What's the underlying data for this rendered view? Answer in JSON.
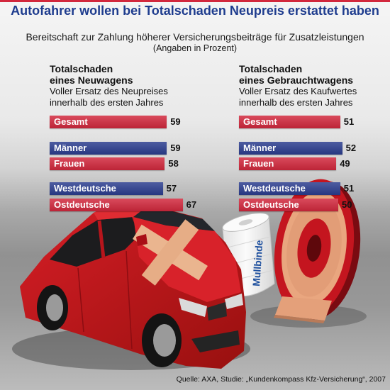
{
  "header": {
    "title": "Autofahrer wollen bei Totalschaden Neupreis erstattet haben",
    "subtitle": "Bereitschaft zur Zahlung höherer Versicherungsbeiträge für Zusatzleistungen",
    "unit_note": "(Angaben in Prozent)"
  },
  "colors": {
    "title": "#1e3c8e",
    "accent_line": "#d2283d"
  },
  "chart_data": [
    {
      "type": "bar",
      "orientation": "horizontal",
      "title_lines": [
        "Totalschaden",
        "eines Neuwagens"
      ],
      "subtitle_lines": [
        "Voller Ersatz des Neupreises",
        "innerhalb des ersten Jahres"
      ],
      "categories": [
        "Gesamt",
        "Männer",
        "Frauen",
        "Westdeutsche",
        "Ostdeutsche"
      ],
      "values": [
        59,
        59,
        58,
        57,
        67
      ],
      "bar_colors": [
        "#d2283d",
        "#2b3d8f",
        "#d2283d",
        "#2b3d8f",
        "#d2283d"
      ],
      "data_labels": true,
      "grid": false
    },
    {
      "type": "bar",
      "orientation": "horizontal",
      "title_lines": [
        "Totalschaden",
        "eines Gebrauchtwagens"
      ],
      "subtitle_lines": [
        "Voller Ersatz des Kaufwertes",
        "innerhalb des ersten Jahres"
      ],
      "categories": [
        "Gesamt",
        "Männer",
        "Frauen",
        "Westdeutsche",
        "Ostdeutsche"
      ],
      "values": [
        51,
        52,
        49,
        51,
        50
      ],
      "bar_colors": [
        "#d2283d",
        "#2b3d8f",
        "#d2283d",
        "#2b3d8f",
        "#d2283d"
      ],
      "data_labels": true,
      "grid": false
    }
  ],
  "photo": {
    "bandage_label": "Mullbinde"
  },
  "footer": {
    "source": "Quelle: AXA, Studie: „Kundenkompass Kfz-Versicherung“, 2007"
  }
}
